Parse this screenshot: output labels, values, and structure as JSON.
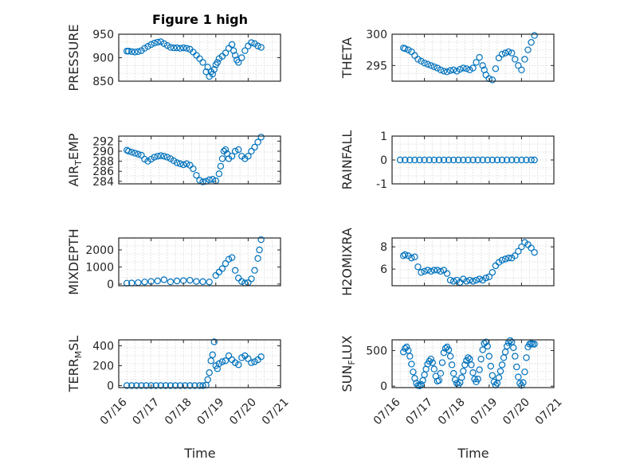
{
  "figure": {
    "title": "Figure 1 high",
    "xlabel": "Time"
  },
  "colors": {
    "series": "#0072BD",
    "axis": "#262626",
    "grid": "#dddddd"
  },
  "x_axis": {
    "ticks": [
      "07/16",
      "07/17",
      "07/18",
      "07/19",
      "07/20",
      "07/21"
    ],
    "domain_days": [
      0,
      5
    ]
  },
  "chart_data": [
    {
      "id": "pressure",
      "type": "scatter",
      "ylabel": "PRESSURE",
      "ylim": [
        850,
        950
      ],
      "yticks": [
        850,
        900,
        950
      ],
      "ytick_labels": [
        "850",
        "900",
        "950"
      ],
      "x": [
        0.25,
        0.3,
        0.4,
        0.5,
        0.6,
        0.7,
        0.8,
        0.9,
        1.0,
        1.1,
        1.2,
        1.3,
        1.4,
        1.5,
        1.6,
        1.7,
        1.8,
        1.9,
        2.0,
        2.1,
        2.2,
        2.3,
        2.4,
        2.5,
        2.6,
        2.7,
        2.75,
        2.8,
        2.85,
        2.9,
        2.95,
        3.0,
        3.05,
        3.1,
        3.2,
        3.3,
        3.4,
        3.5,
        3.55,
        3.6,
        3.65,
        3.7,
        3.8,
        3.9,
        4.0,
        4.1,
        4.2,
        4.3,
        4.4
      ],
      "y": [
        914,
        914,
        913,
        912,
        913,
        915,
        920,
        924,
        928,
        931,
        933,
        934,
        930,
        926,
        922,
        921,
        921,
        920,
        921,
        920,
        918,
        912,
        905,
        898,
        890,
        870,
        880,
        860,
        870,
        865,
        875,
        885,
        890,
        898,
        903,
        910,
        920,
        928,
        915,
        905,
        895,
        890,
        900,
        915,
        925,
        932,
        930,
        925,
        922
      ]
    },
    {
      "id": "theta",
      "type": "scatter",
      "ylabel": "THETA",
      "ylim": [
        292.5,
        300
      ],
      "yticks": [
        295,
        300
      ],
      "ytick_labels": [
        "295",
        "300"
      ],
      "x": [
        0.35,
        0.4,
        0.5,
        0.6,
        0.7,
        0.8,
        0.9,
        1.0,
        1.1,
        1.2,
        1.3,
        1.4,
        1.5,
        1.6,
        1.7,
        1.8,
        1.9,
        2.0,
        2.1,
        2.2,
        2.3,
        2.4,
        2.5,
        2.6,
        2.7,
        2.8,
        2.85,
        2.9,
        3.0,
        3.1,
        3.2,
        3.3,
        3.4,
        3.5,
        3.6,
        3.7,
        3.8,
        3.9,
        4.0,
        4.1,
        4.2,
        4.3,
        4.4
      ],
      "y": [
        297.8,
        297.7,
        297.5,
        297.2,
        296.6,
        296.0,
        295.7,
        295.4,
        295.2,
        295.0,
        294.8,
        294.6,
        294.3,
        294.1,
        294.0,
        294.2,
        294.3,
        294.1,
        294.4,
        294.6,
        294.5,
        294.3,
        294.6,
        295.5,
        296.3,
        295.0,
        294.3,
        293.5,
        292.9,
        292.7,
        294.5,
        296.2,
        296.8,
        297.0,
        297.2,
        297.0,
        296.0,
        295.0,
        294.3,
        296.0,
        297.5,
        298.7,
        299.8
      ]
    },
    {
      "id": "air_temp",
      "type": "scatter",
      "ylabel": "AIR_TEMP",
      "ylim": [
        283.5,
        293
      ],
      "yticks": [
        284,
        286,
        288,
        290,
        292
      ],
      "ytick_labels": [
        "284",
        "286",
        "288",
        "290",
        "292"
      ],
      "x": [
        0.25,
        0.3,
        0.4,
        0.5,
        0.6,
        0.7,
        0.8,
        0.9,
        1.0,
        1.1,
        1.2,
        1.3,
        1.4,
        1.5,
        1.6,
        1.7,
        1.8,
        1.9,
        2.0,
        2.1,
        2.2,
        2.3,
        2.4,
        2.5,
        2.6,
        2.7,
        2.8,
        2.9,
        3.0,
        3.1,
        3.15,
        3.2,
        3.25,
        3.3,
        3.35,
        3.4,
        3.5,
        3.6,
        3.7,
        3.8,
        3.9,
        4.0,
        4.1,
        4.2,
        4.3,
        4.4
      ],
      "y": [
        290.2,
        290.0,
        289.8,
        289.6,
        289.4,
        289.2,
        288.4,
        288.0,
        288.4,
        288.8,
        289.0,
        289.1,
        289.0,
        288.8,
        288.5,
        288.1,
        287.7,
        287.5,
        287.3,
        287.5,
        287.2,
        286.5,
        285.2,
        284.2,
        283.9,
        284.0,
        284.3,
        284.4,
        284.1,
        285.5,
        287.0,
        288.5,
        290.0,
        290.3,
        289.5,
        288.5,
        289.0,
        290.0,
        290.3,
        289.0,
        288.5,
        289.0,
        290.0,
        290.8,
        291.8,
        292.8
      ]
    },
    {
      "id": "rainfall",
      "type": "scatter",
      "ylabel": "RAINFALL",
      "ylim": [
        -1,
        1
      ],
      "yticks": [
        -1,
        0,
        1
      ],
      "ytick_labels": [
        "-1",
        "0",
        "1"
      ],
      "x": [
        0.25,
        0.4,
        0.55,
        0.7,
        0.85,
        1.0,
        1.15,
        1.3,
        1.45,
        1.6,
        1.75,
        1.9,
        2.05,
        2.2,
        2.35,
        2.5,
        2.65,
        2.8,
        2.95,
        3.1,
        3.25,
        3.4,
        3.55,
        3.7,
        3.85,
        4.0,
        4.15,
        4.3,
        4.4
      ],
      "y": [
        0,
        0,
        0,
        0,
        0,
        0,
        0,
        0,
        0,
        0,
        0,
        0,
        0,
        0,
        0,
        0,
        0,
        0,
        0,
        0,
        0,
        0,
        0,
        0,
        0,
        0,
        0,
        0,
        0
      ]
    },
    {
      "id": "mixdepth",
      "type": "scatter",
      "ylabel": "MIXDEPTH",
      "ylim": [
        -100,
        2700
      ],
      "yticks": [
        0,
        1000,
        2000
      ],
      "ytick_labels": [
        "0",
        "1000",
        "2000"
      ],
      "x": [
        0.25,
        0.4,
        0.6,
        0.8,
        1.0,
        1.2,
        1.4,
        1.6,
        1.8,
        2.0,
        2.2,
        2.4,
        2.6,
        2.8,
        3.0,
        3.1,
        3.2,
        3.3,
        3.4,
        3.5,
        3.6,
        3.7,
        3.8,
        3.9,
        4.0,
        4.1,
        4.2,
        4.3,
        4.35,
        4.4
      ],
      "y": [
        50,
        60,
        80,
        120,
        150,
        180,
        250,
        130,
        180,
        200,
        220,
        150,
        140,
        120,
        500,
        700,
        900,
        1200,
        1450,
        1550,
        800,
        350,
        150,
        60,
        80,
        300,
        800,
        1500,
        2000,
        2600
      ]
    },
    {
      "id": "h2omixra",
      "type": "scatter",
      "ylabel": "H2OMIXRA",
      "ylim": [
        4.5,
        8.8
      ],
      "yticks": [
        6,
        8
      ],
      "ytick_labels": [
        "6",
        "8"
      ],
      "x": [
        0.35,
        0.4,
        0.5,
        0.6,
        0.7,
        0.8,
        0.9,
        1.0,
        1.1,
        1.2,
        1.3,
        1.4,
        1.5,
        1.6,
        1.7,
        1.8,
        1.9,
        2.0,
        2.1,
        2.2,
        2.3,
        2.4,
        2.5,
        2.6,
        2.7,
        2.8,
        2.9,
        3.0,
        3.1,
        3.2,
        3.3,
        3.4,
        3.5,
        3.6,
        3.7,
        3.8,
        3.9,
        4.0,
        4.1,
        4.2,
        4.3,
        4.4
      ],
      "y": [
        7.2,
        7.3,
        7.2,
        7.0,
        7.1,
        6.2,
        5.7,
        5.8,
        5.9,
        5.8,
        5.9,
        5.9,
        5.8,
        5.9,
        5.6,
        5.0,
        4.9,
        5.0,
        4.8,
        5.1,
        4.9,
        5.0,
        4.9,
        5.0,
        5.1,
        5.0,
        5.2,
        5.3,
        5.7,
        6.3,
        6.6,
        6.8,
        6.9,
        7.0,
        7.0,
        7.2,
        7.6,
        8.0,
        8.4,
        8.2,
        7.9,
        7.5
      ]
    },
    {
      "id": "terr_msl",
      "type": "scatter",
      "ylabel": "TERR_MSL",
      "ylim": [
        -20,
        460
      ],
      "yticks": [
        0,
        200,
        400
      ],
      "ytick_labels": [
        "0",
        "200",
        "400"
      ],
      "x": [
        0.25,
        0.4,
        0.55,
        0.7,
        0.85,
        1.0,
        1.15,
        1.3,
        1.45,
        1.6,
        1.75,
        1.9,
        2.05,
        2.2,
        2.35,
        2.5,
        2.6,
        2.7,
        2.75,
        2.8,
        2.85,
        2.9,
        2.95,
        3.0,
        3.05,
        3.1,
        3.2,
        3.3,
        3.4,
        3.5,
        3.6,
        3.7,
        3.8,
        3.9,
        4.0,
        4.1,
        4.2,
        4.3,
        4.4
      ],
      "y": [
        0,
        0,
        0,
        0,
        0,
        0,
        0,
        0,
        0,
        0,
        0,
        0,
        0,
        0,
        0,
        0,
        0,
        5,
        60,
        130,
        250,
        310,
        440,
        200,
        170,
        220,
        240,
        250,
        300,
        260,
        230,
        210,
        280,
        300,
        270,
        230,
        240,
        260,
        290
      ]
    },
    {
      "id": "sun_flux",
      "type": "scatter",
      "ylabel": "SUN_FLUX",
      "ylim": [
        -20,
        650
      ],
      "yticks": [
        0,
        500
      ],
      "ytick_labels": [
        "0",
        "500"
      ],
      "x": [
        0.35,
        0.4,
        0.45,
        0.5,
        0.55,
        0.6,
        0.65,
        0.7,
        0.75,
        0.8,
        0.85,
        0.9,
        0.95,
        1.0,
        1.05,
        1.1,
        1.15,
        1.2,
        1.25,
        1.3,
        1.35,
        1.4,
        1.45,
        1.5,
        1.55,
        1.6,
        1.65,
        1.7,
        1.75,
        1.8,
        1.85,
        1.9,
        1.95,
        2.0,
        2.05,
        2.1,
        2.15,
        2.2,
        2.25,
        2.3,
        2.35,
        2.4,
        2.45,
        2.5,
        2.55,
        2.6,
        2.65,
        2.7,
        2.75,
        2.8,
        2.85,
        2.9,
        2.95,
        3.0,
        3.05,
        3.1,
        3.15,
        3.2,
        3.25,
        3.3,
        3.35,
        3.4,
        3.45,
        3.5,
        3.55,
        3.6,
        3.65,
        3.7,
        3.75,
        3.8,
        3.85,
        3.9,
        3.95,
        4.0,
        4.05,
        4.1,
        4.15,
        4.2,
        4.25,
        4.3,
        4.35,
        4.4
      ],
      "y": [
        480,
        530,
        550,
        500,
        420,
        310,
        200,
        110,
        40,
        10,
        5,
        25,
        80,
        160,
        240,
        310,
        350,
        380,
        330,
        240,
        140,
        70,
        80,
        180,
        330,
        470,
        530,
        550,
        510,
        420,
        300,
        180,
        90,
        40,
        20,
        50,
        120,
        210,
        300,
        360,
        400,
        380,
        300,
        190,
        100,
        60,
        100,
        230,
        380,
        510,
        600,
        620,
        560,
        420,
        280,
        150,
        60,
        15,
        40,
        120,
        210,
        300,
        400,
        480,
        560,
        610,
        640,
        620,
        540,
        420,
        270,
        130,
        40,
        10,
        50,
        200,
        400,
        550,
        590,
        600,
        590,
        590
      ]
    }
  ]
}
